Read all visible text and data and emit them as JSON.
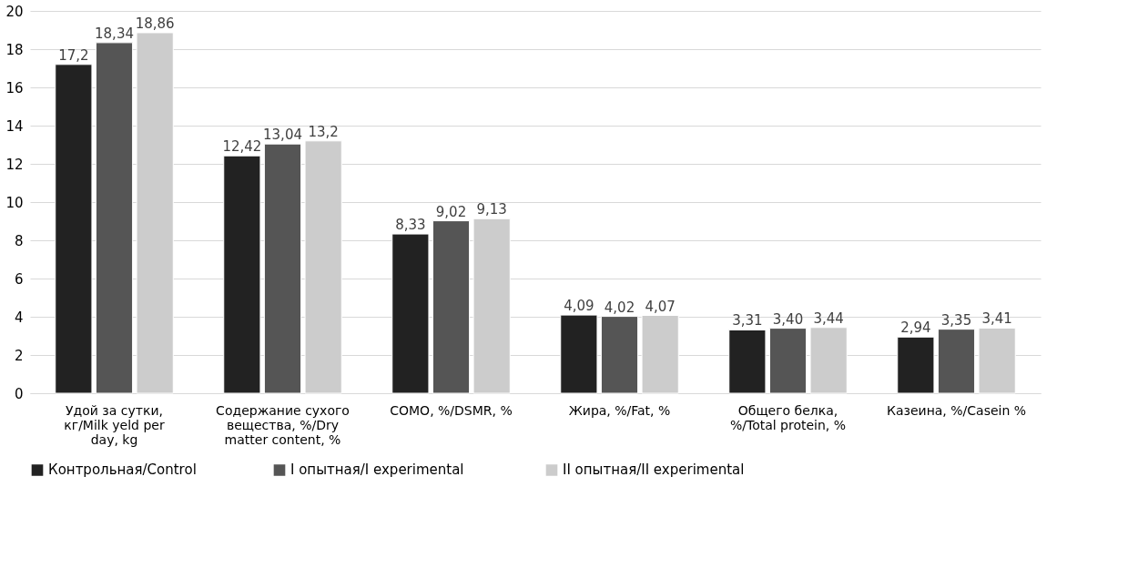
{
  "chart_data": {
    "type": "bar",
    "categories": [
      "Удой за сутки, кг/Milk yeld per day, kg",
      "Содержание сухого вещества, %/Dry matter content, %",
      "СОМО, %/DSMR, %",
      "Жира, %/Fat, %",
      "Общего белка, %/Total protein, %",
      "Казеина, %/Casein %"
    ],
    "series": [
      {
        "name": "Контрольная/Control",
        "color": "#222222",
        "values": [
          17.2,
          12.42,
          8.33,
          4.09,
          3.31,
          2.94
        ],
        "value_labels": [
          "17,2",
          "12,42",
          "8,33",
          "4,09",
          "3,31",
          "2,94"
        ]
      },
      {
        "name": "I  опытная/I experimental",
        "color": "#555555",
        "values": [
          18.34,
          13.04,
          9.02,
          4.02,
          3.4,
          3.35
        ],
        "value_labels": [
          "18,34",
          "13,04",
          "9,02",
          "4,02",
          "3,40",
          "3,35"
        ]
      },
      {
        "name": "II опытная/II experimental",
        "color": "#cccccc",
        "values": [
          18.86,
          13.2,
          9.13,
          4.07,
          3.44,
          3.41
        ],
        "value_labels": [
          "18,86",
          "13,2",
          "9,13",
          "4,07",
          "3,44",
          "3,41"
        ]
      }
    ],
    "ylim": [
      0,
      20
    ],
    "yticks": [
      0,
      2,
      4,
      6,
      8,
      10,
      12,
      14,
      16,
      18,
      20
    ],
    "grid": "y",
    "legend": "bottom"
  }
}
